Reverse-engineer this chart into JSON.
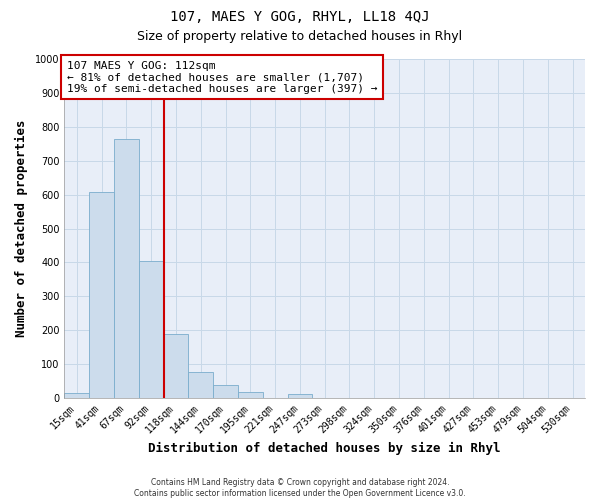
{
  "title": "107, MAES Y GOG, RHYL, LL18 4QJ",
  "subtitle": "Size of property relative to detached houses in Rhyl",
  "xlabel": "Distribution of detached houses by size in Rhyl",
  "ylabel": "Number of detached properties",
  "footer_line1": "Contains HM Land Registry data © Crown copyright and database right 2024.",
  "footer_line2": "Contains public sector information licensed under the Open Government Licence v3.0.",
  "bar_labels": [
    "15sqm",
    "41sqm",
    "67sqm",
    "92sqm",
    "118sqm",
    "144sqm",
    "170sqm",
    "195sqm",
    "221sqm",
    "247sqm",
    "273sqm",
    "298sqm",
    "324sqm",
    "350sqm",
    "376sqm",
    "401sqm",
    "427sqm",
    "453sqm",
    "479sqm",
    "504sqm",
    "530sqm"
  ],
  "bar_values": [
    15,
    607,
    765,
    405,
    188,
    78,
    40,
    18,
    0,
    13,
    0,
    0,
    0,
    0,
    0,
    0,
    0,
    0,
    0,
    0,
    0
  ],
  "bar_color": "#ccdcec",
  "bar_edge_color": "#7aadcc",
  "vline_color": "#cc0000",
  "vline_index": 4,
  "ylim": [
    0,
    1000
  ],
  "yticks": [
    0,
    100,
    200,
    300,
    400,
    500,
    600,
    700,
    800,
    900,
    1000
  ],
  "annotation_title": "107 MAES Y GOG: 112sqm",
  "annotation_line1": "← 81% of detached houses are smaller (1,707)",
  "annotation_line2": "19% of semi-detached houses are larger (397) →",
  "annotation_box_color": "#cc0000",
  "annotation_bg_color": "#ffffff",
  "grid_color": "#c8d8e8",
  "bg_color": "#ffffff",
  "plot_bg_color": "#e8eef8",
  "title_fontsize": 10,
  "subtitle_fontsize": 9,
  "label_fontsize": 9,
  "tick_fontsize": 7,
  "annot_fontsize": 8
}
